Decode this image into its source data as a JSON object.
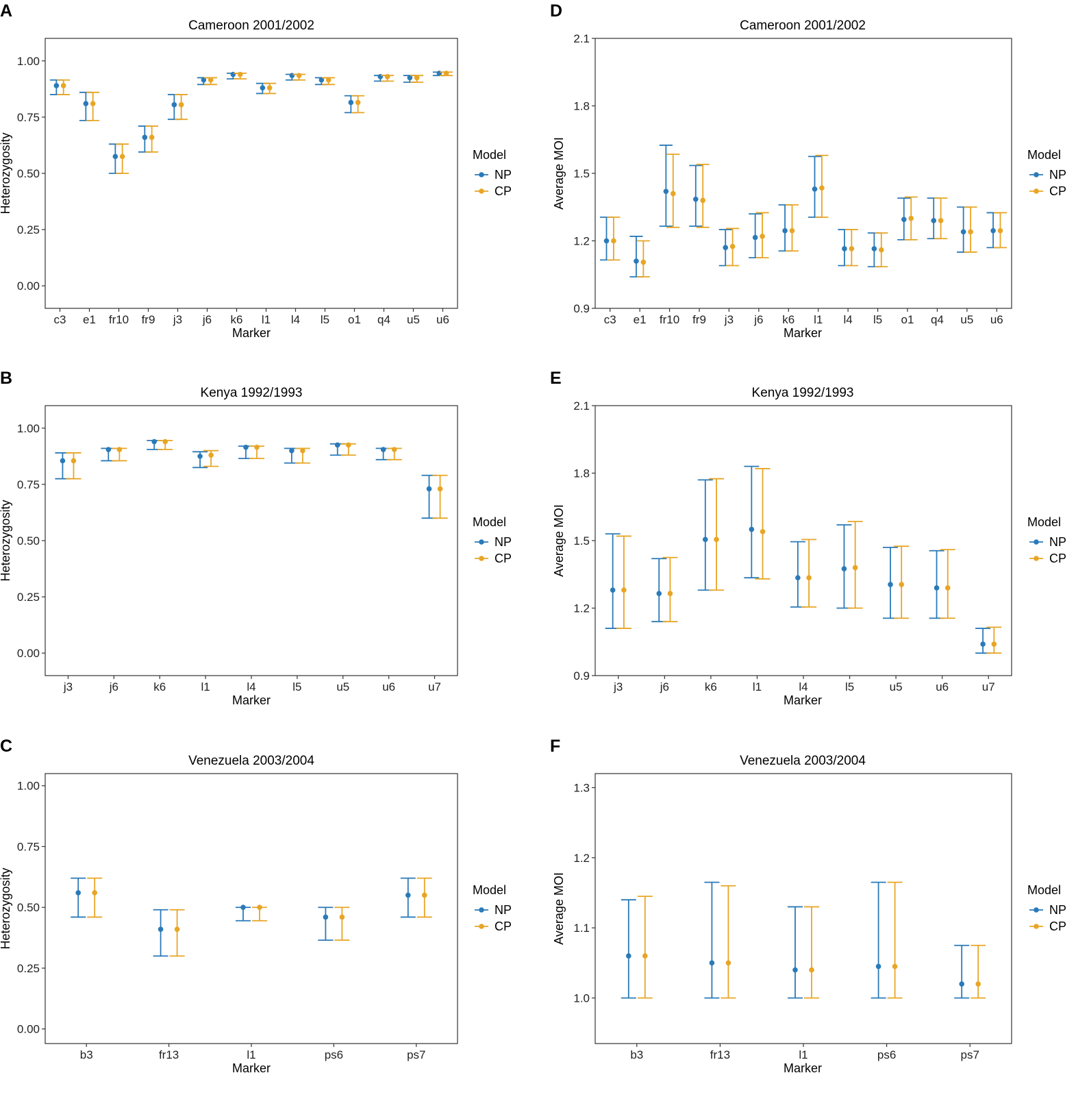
{
  "colors": {
    "NP": "#2a7ab8",
    "CP": "#e8a525",
    "frame": "#333333",
    "tick": "#333333"
  },
  "chart_data": [
    {
      "panel": "A",
      "type": "errorbar",
      "title": "Cameroon 2001/2002",
      "xlabel": "Marker",
      "ylabel": "Heterozygosity",
      "ylim": [
        -0.1,
        1.1
      ],
      "yticks": [
        0.0,
        0.25,
        0.5,
        0.75,
        1.0
      ],
      "ytick_labels": [
        "0.00",
        "0.25",
        "0.50",
        "0.75",
        "1.00"
      ],
      "legend": {
        "title": "Model",
        "entries": [
          "NP",
          "CP"
        ]
      },
      "categories": [
        "c3",
        "e1",
        "fr10",
        "fr9",
        "j3",
        "j6",
        "k6",
        "l1",
        "l4",
        "l5",
        "o1",
        "q4",
        "u5",
        "u6"
      ],
      "series": [
        {
          "name": "NP",
          "values": [
            0.89,
            0.81,
            0.575,
            0.66,
            0.805,
            0.915,
            0.94,
            0.88,
            0.935,
            0.915,
            0.815,
            0.93,
            0.925,
            0.945
          ],
          "lower": [
            0.85,
            0.735,
            0.5,
            0.595,
            0.74,
            0.895,
            0.92,
            0.855,
            0.915,
            0.895,
            0.77,
            0.91,
            0.905,
            0.935
          ],
          "upper": [
            0.915,
            0.86,
            0.63,
            0.71,
            0.85,
            0.925,
            0.945,
            0.9,
            0.94,
            0.925,
            0.845,
            0.935,
            0.935,
            0.95
          ]
        },
        {
          "name": "CP",
          "values": [
            0.89,
            0.81,
            0.575,
            0.66,
            0.805,
            0.915,
            0.94,
            0.88,
            0.935,
            0.915,
            0.815,
            0.93,
            0.925,
            0.945
          ],
          "lower": [
            0.85,
            0.735,
            0.5,
            0.595,
            0.74,
            0.895,
            0.92,
            0.855,
            0.915,
            0.895,
            0.77,
            0.91,
            0.905,
            0.935
          ],
          "upper": [
            0.915,
            0.86,
            0.63,
            0.71,
            0.85,
            0.925,
            0.945,
            0.9,
            0.94,
            0.925,
            0.845,
            0.935,
            0.935,
            0.95
          ]
        }
      ]
    },
    {
      "panel": "B",
      "type": "errorbar",
      "title": "Kenya 1992/1993",
      "xlabel": "Marker",
      "ylabel": "Heterozygosity",
      "ylim": [
        -0.1,
        1.1
      ],
      "yticks": [
        0.0,
        0.25,
        0.5,
        0.75,
        1.0
      ],
      "ytick_labels": [
        "0.00",
        "0.25",
        "0.50",
        "0.75",
        "1.00"
      ],
      "legend": {
        "title": "Model",
        "entries": [
          "NP",
          "CP"
        ]
      },
      "categories": [
        "j3",
        "j6",
        "k6",
        "l1",
        "l4",
        "l5",
        "u5",
        "u6",
        "u7"
      ],
      "series": [
        {
          "name": "NP",
          "values": [
            0.855,
            0.905,
            0.94,
            0.875,
            0.915,
            0.9,
            0.925,
            0.905,
            0.73
          ],
          "lower": [
            0.775,
            0.855,
            0.905,
            0.825,
            0.865,
            0.845,
            0.88,
            0.86,
            0.6
          ],
          "upper": [
            0.89,
            0.91,
            0.945,
            0.895,
            0.92,
            0.91,
            0.93,
            0.91,
            0.79
          ]
        },
        {
          "name": "CP",
          "values": [
            0.855,
            0.905,
            0.94,
            0.88,
            0.915,
            0.9,
            0.925,
            0.905,
            0.73
          ],
          "lower": [
            0.775,
            0.855,
            0.905,
            0.83,
            0.865,
            0.845,
            0.88,
            0.86,
            0.6
          ],
          "upper": [
            0.89,
            0.91,
            0.945,
            0.9,
            0.92,
            0.91,
            0.93,
            0.91,
            0.79
          ]
        }
      ]
    },
    {
      "panel": "C",
      "type": "errorbar",
      "title": "Venezuela 2003/2004",
      "xlabel": "Marker",
      "ylabel": "Heterozygosity",
      "ylim": [
        -0.06,
        1.05
      ],
      "yticks": [
        0.0,
        0.25,
        0.5,
        0.75,
        1.0
      ],
      "ytick_labels": [
        "0.00",
        "0.25",
        "0.50",
        "0.75",
        "1.00"
      ],
      "legend": {
        "title": "Model",
        "entries": [
          "NP",
          "CP"
        ]
      },
      "categories": [
        "b3",
        "fr13",
        "l1",
        "ps6",
        "ps7"
      ],
      "series": [
        {
          "name": "NP",
          "values": [
            0.56,
            0.41,
            0.5,
            0.46,
            0.55
          ],
          "lower": [
            0.46,
            0.3,
            0.445,
            0.365,
            0.46
          ],
          "upper": [
            0.62,
            0.49,
            0.5,
            0.5,
            0.62
          ]
        },
        {
          "name": "CP",
          "values": [
            0.56,
            0.41,
            0.5,
            0.46,
            0.55
          ],
          "lower": [
            0.46,
            0.3,
            0.445,
            0.365,
            0.46
          ],
          "upper": [
            0.62,
            0.49,
            0.5,
            0.5,
            0.62
          ]
        }
      ]
    },
    {
      "panel": "D",
      "type": "errorbar",
      "title": "Cameroon 2001/2002",
      "xlabel": "Marker",
      "ylabel": "Average MOI",
      "ylim": [
        0.9,
        2.1
      ],
      "yticks": [
        0.9,
        1.2,
        1.5,
        1.8,
        2.1
      ],
      "ytick_labels": [
        "0.9",
        "1.2",
        "1.5",
        "1.8",
        "2.1"
      ],
      "legend": {
        "title": "Model",
        "entries": [
          "NP",
          "CP"
        ]
      },
      "categories": [
        "c3",
        "e1",
        "fr10",
        "fr9",
        "j3",
        "j6",
        "k6",
        "l1",
        "l4",
        "l5",
        "o1",
        "q4",
        "u5",
        "u6"
      ],
      "series": [
        {
          "name": "NP",
          "values": [
            1.2,
            1.11,
            1.42,
            1.385,
            1.17,
            1.215,
            1.245,
            1.43,
            1.165,
            1.165,
            1.295,
            1.29,
            1.24,
            1.245
          ],
          "lower": [
            1.115,
            1.04,
            1.265,
            1.265,
            1.09,
            1.125,
            1.155,
            1.305,
            1.09,
            1.085,
            1.205,
            1.21,
            1.15,
            1.17
          ],
          "upper": [
            1.305,
            1.22,
            1.625,
            1.535,
            1.25,
            1.32,
            1.36,
            1.575,
            1.25,
            1.235,
            1.39,
            1.39,
            1.35,
            1.325
          ]
        },
        {
          "name": "CP",
          "values": [
            1.2,
            1.105,
            1.41,
            1.38,
            1.175,
            1.22,
            1.245,
            1.435,
            1.165,
            1.16,
            1.3,
            1.29,
            1.24,
            1.245
          ],
          "lower": [
            1.115,
            1.04,
            1.26,
            1.26,
            1.09,
            1.125,
            1.155,
            1.305,
            1.09,
            1.085,
            1.205,
            1.21,
            1.15,
            1.17
          ],
          "upper": [
            1.305,
            1.2,
            1.585,
            1.54,
            1.255,
            1.325,
            1.36,
            1.58,
            1.25,
            1.235,
            1.395,
            1.39,
            1.35,
            1.325
          ]
        }
      ]
    },
    {
      "panel": "E",
      "type": "errorbar",
      "title": "Kenya 1992/1993",
      "xlabel": "Marker",
      "ylabel": "Average MOI",
      "ylim": [
        0.9,
        2.1
      ],
      "yticks": [
        0.9,
        1.2,
        1.5,
        1.8,
        2.1
      ],
      "ytick_labels": [
        "0.9",
        "1.2",
        "1.5",
        "1.8",
        "2.1"
      ],
      "legend": {
        "title": "Model",
        "entries": [
          "NP",
          "CP"
        ]
      },
      "categories": [
        "j3",
        "j6",
        "k6",
        "l1",
        "l4",
        "l5",
        "u5",
        "u6",
        "u7"
      ],
      "series": [
        {
          "name": "NP",
          "values": [
            1.28,
            1.265,
            1.505,
            1.55,
            1.335,
            1.375,
            1.305,
            1.29,
            1.04
          ],
          "lower": [
            1.11,
            1.14,
            1.28,
            1.335,
            1.205,
            1.2,
            1.155,
            1.155,
            1.0
          ],
          "upper": [
            1.53,
            1.42,
            1.77,
            1.83,
            1.495,
            1.57,
            1.47,
            1.455,
            1.11
          ]
        },
        {
          "name": "CP",
          "values": [
            1.28,
            1.265,
            1.505,
            1.54,
            1.335,
            1.38,
            1.305,
            1.29,
            1.04
          ],
          "lower": [
            1.11,
            1.14,
            1.28,
            1.33,
            1.205,
            1.2,
            1.155,
            1.155,
            1.0
          ],
          "upper": [
            1.52,
            1.425,
            1.775,
            1.82,
            1.505,
            1.585,
            1.475,
            1.46,
            1.115
          ]
        }
      ]
    },
    {
      "panel": "F",
      "type": "errorbar",
      "title": "Venezuela 2003/2004",
      "xlabel": "Marker",
      "ylabel": "Average MOI",
      "ylim": [
        0.935,
        1.32
      ],
      "yticks": [
        1.0,
        1.1,
        1.2,
        1.3
      ],
      "ytick_labels": [
        "1.0",
        "1.1",
        "1.2",
        "1.3"
      ],
      "legend": {
        "title": "Model",
        "entries": [
          "NP",
          "CP"
        ]
      },
      "categories": [
        "b3",
        "fr13",
        "l1",
        "ps6",
        "ps7"
      ],
      "series": [
        {
          "name": "NP",
          "values": [
            1.06,
            1.05,
            1.04,
            1.045,
            1.02
          ],
          "lower": [
            1.0,
            1.0,
            1.0,
            1.0,
            1.0
          ],
          "upper": [
            1.14,
            1.165,
            1.13,
            1.165,
            1.075
          ]
        },
        {
          "name": "CP",
          "values": [
            1.06,
            1.05,
            1.04,
            1.045,
            1.02
          ],
          "lower": [
            1.0,
            1.0,
            1.0,
            1.0,
            1.0
          ],
          "upper": [
            1.145,
            1.16,
            1.13,
            1.165,
            1.075
          ]
        }
      ]
    }
  ]
}
